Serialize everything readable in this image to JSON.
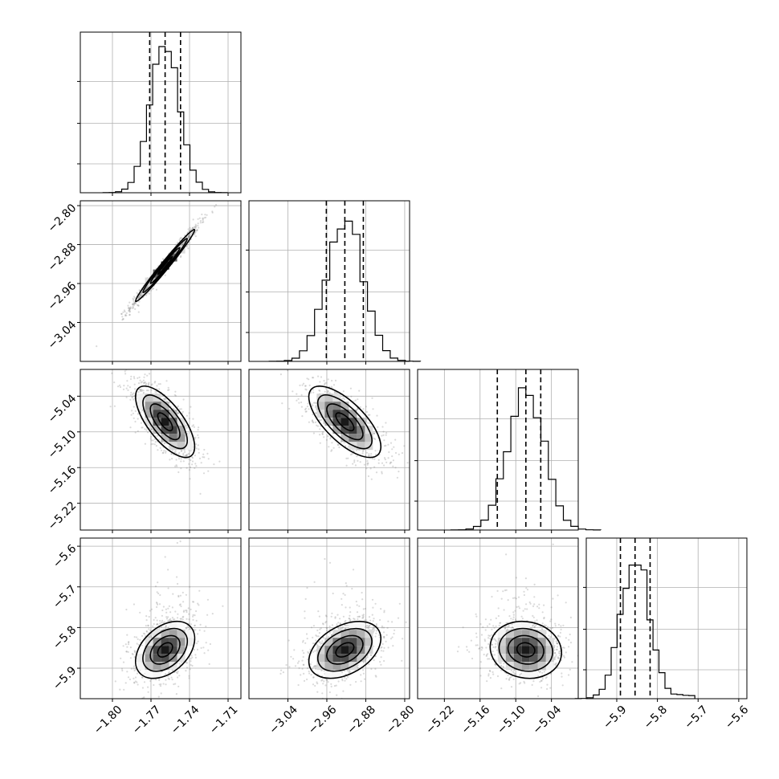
{
  "chart_data": {
    "type": "corner",
    "parameters": [
      {
        "index": 0,
        "median": -1.759,
        "q16": -1.771,
        "q84": -1.747,
        "std": 0.0115,
        "range": [
          -1.825,
          -1.7
        ],
        "ticks": [
          -1.8,
          -1.77,
          -1.74,
          -1.71
        ],
        "tick_labels": [
          "−1.80",
          "−1.77",
          "−1.74",
          "−1.71"
        ]
      },
      {
        "index": 1,
        "median": -2.923,
        "q16": -2.961,
        "q84": -2.885,
        "std": 0.037,
        "range": [
          -3.12,
          -2.79
        ],
        "ticks": [
          -3.04,
          -2.96,
          -2.88,
          -2.8
        ],
        "tick_labels": [
          "−3.04",
          "−2.96",
          "−2.88",
          "−2.80"
        ]
      },
      {
        "index": 2,
        "median": -5.083,
        "q16": -5.131,
        "q84": -5.058,
        "std": 0.03,
        "range": [
          -5.265,
          -4.995
        ],
        "ticks": [
          -5.22,
          -5.16,
          -5.1,
          -5.04
        ],
        "tick_labels": [
          "−5.22",
          "−5.16",
          "−5.10",
          "−5.04"
        ]
      },
      {
        "index": 3,
        "median": -5.855,
        "q16": -5.891,
        "q84": -5.818,
        "std": 0.035,
        "range": [
          -5.975,
          -5.58
        ],
        "ticks": [
          -5.9,
          -5.8,
          -5.7,
          -5.6
        ],
        "tick_labels": [
          "−5.9",
          "−5.8",
          "−5.7",
          "−5.6"
        ]
      }
    ],
    "pairs": [
      {
        "x": 0,
        "y": 1,
        "correlation": 0.985
      },
      {
        "x": 0,
        "y": 2,
        "correlation": -0.7
      },
      {
        "x": 1,
        "y": 2,
        "correlation": -0.7
      },
      {
        "x": 0,
        "y": 3,
        "correlation": 0.4
      },
      {
        "x": 1,
        "y": 3,
        "correlation": 0.4
      },
      {
        "x": 2,
        "y": 3,
        "correlation": -0.1
      }
    ],
    "quantile_lines": [
      0.16,
      0.5,
      0.84
    ],
    "grid": true,
    "title": "",
    "xlabel": "",
    "ylabel": ""
  }
}
